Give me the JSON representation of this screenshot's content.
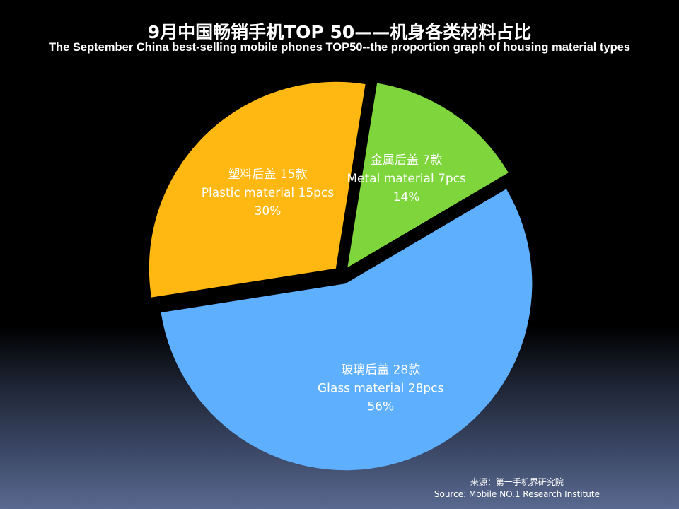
{
  "title": "9月中国畅销手机TOP 50——机身各类材料占比",
  "subtitle": "The September China best-selling mobile phones TOP50--the proportion graph of housing material types",
  "chart_data": {
    "type": "pie",
    "slices": [
      {
        "label_zh": "玻璃后盖 28款",
        "label_en": "Glass material 28pcs",
        "value": 28,
        "percent_label": "56%",
        "color": "#5eb0ff"
      },
      {
        "label_zh": "塑料后盖 15款",
        "label_en": "Plastic material 15pcs",
        "value": 15,
        "percent_label": "30%",
        "color": "#ffb711"
      },
      {
        "label_zh": "金属后盖 7款",
        "label_en": "Metal material 7pcs",
        "value": 7,
        "percent_label": "14%",
        "color": "#7ed53c"
      }
    ],
    "exploded": true,
    "legend": "none"
  },
  "source": {
    "zh": "来源：第一手机界研究院",
    "en": "Source: Mobile NO.1 Research Institute"
  }
}
